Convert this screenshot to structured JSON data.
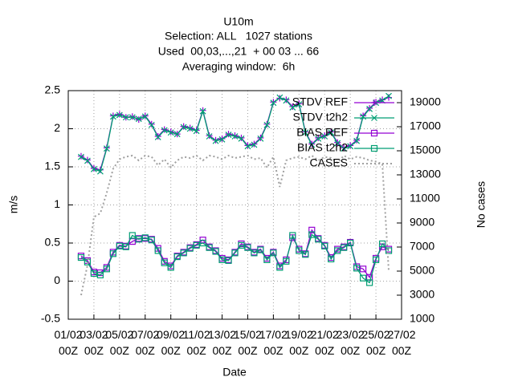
{
  "chart_data": {
    "type": "line",
    "title": "U10m",
    "subtitle": [
      "Selection: ALL   1027 stations",
      "Used  00,03,...,21  + 00 03 ... 66",
      "Averaging window:  6h"
    ],
    "xlabel": "Date",
    "ylabel": "m/s",
    "y2label": "No cases",
    "x": [
      1,
      1.5,
      2,
      2.5,
      3,
      3.5,
      4,
      4.5,
      5,
      5.5,
      6,
      6.5,
      7,
      7.5,
      8,
      8.5,
      9,
      9.5,
      10,
      10.5,
      11,
      11.5,
      12,
      12.5,
      13,
      13.5,
      14,
      14.5,
      15,
      15.5,
      16,
      16.5,
      17,
      17.5,
      18,
      18.5,
      19,
      19.5,
      20,
      20.5,
      21,
      21.5,
      22,
      22.5,
      23,
      23.5,
      24,
      24.5,
      25
    ],
    "xlim": [
      0,
      26
    ],
    "xticks": [
      {
        "value": 0,
        "label": "01/02\n00Z"
      },
      {
        "value": 2,
        "label": "03/02\n00Z"
      },
      {
        "value": 4,
        "label": "05/02\n00Z"
      },
      {
        "value": 6,
        "label": "07/02\n00Z"
      },
      {
        "value": 8,
        "label": "09/02\n00Z"
      },
      {
        "value": 10,
        "label": "11/02\n00Z"
      },
      {
        "value": 12,
        "label": "13/02\n00Z"
      },
      {
        "value": 14,
        "label": "15/02\n00Z"
      },
      {
        "value": 16,
        "label": "17/02\n00Z"
      },
      {
        "value": 18,
        "label": "19/02\n00Z"
      },
      {
        "value": 20,
        "label": "21/02\n00Z"
      },
      {
        "value": 22,
        "label": "23/02\n00Z"
      },
      {
        "value": 24,
        "label": "25/02\n00Z"
      },
      {
        "value": 26,
        "label": "27/02\n00Z"
      }
    ],
    "ylim": [
      -0.5,
      2.5
    ],
    "yticks": [
      -0.5,
      0,
      0.5,
      1,
      1.5,
      2,
      2.5
    ],
    "y2lim": [
      1000,
      20000
    ],
    "y2ticks": [
      1000,
      3000,
      5000,
      7000,
      9000,
      11000,
      13000,
      15000,
      17000,
      19000
    ],
    "grid": true,
    "legend": "top-right",
    "series": [
      {
        "name": "STDV REF",
        "color": "#9400d3",
        "marker": "plus",
        "line_style": "solid",
        "values": [
          1.64,
          1.59,
          1.48,
          1.46,
          1.75,
          2.17,
          2.19,
          2.15,
          2.16,
          2.12,
          2.17,
          2.06,
          1.9,
          1.99,
          1.96,
          1.93,
          2.03,
          2.01,
          1.98,
          2.24,
          1.91,
          1.85,
          1.87,
          1.93,
          1.91,
          1.88,
          1.78,
          1.8,
          1.88,
          2.06,
          2.35,
          2.4,
          2.38,
          2.29,
          2.33,
          1.96,
          1.8,
          1.88,
          1.91,
          1.96,
          1.82,
          1.75,
          1.78,
          1.85,
          2.17,
          2.27,
          2.35,
          2.38,
          2.41
        ]
      },
      {
        "name": "STDV t2h2",
        "color": "#009e73",
        "marker": "cross",
        "line_style": "solid",
        "values": [
          1.63,
          1.58,
          1.47,
          1.44,
          1.74,
          2.16,
          2.18,
          2.15,
          2.15,
          2.13,
          2.16,
          2.05,
          1.89,
          1.98,
          1.95,
          1.93,
          2.02,
          2.0,
          1.97,
          2.23,
          1.9,
          1.84,
          1.86,
          1.92,
          1.9,
          1.87,
          1.77,
          1.79,
          1.87,
          2.05,
          2.34,
          2.41,
          2.37,
          2.28,
          2.32,
          1.95,
          1.79,
          1.87,
          1.9,
          1.95,
          1.81,
          1.74,
          1.77,
          1.84,
          2.16,
          2.26,
          2.34,
          2.37,
          2.43
        ]
      },
      {
        "name": "BIAS REF",
        "color": "#9400d3",
        "marker": "square",
        "line_style": "solid",
        "values": [
          0.33,
          0.27,
          0.12,
          0.11,
          0.18,
          0.38,
          0.47,
          0.46,
          0.52,
          0.56,
          0.56,
          0.55,
          0.43,
          0.26,
          0.2,
          0.33,
          0.38,
          0.44,
          0.48,
          0.54,
          0.45,
          0.4,
          0.3,
          0.28,
          0.38,
          0.49,
          0.45,
          0.38,
          0.42,
          0.3,
          0.38,
          0.2,
          0.28,
          0.57,
          0.42,
          0.36,
          0.67,
          0.56,
          0.47,
          0.31,
          0.42,
          0.45,
          0.51,
          0.19,
          0.16,
          0.05,
          0.3,
          0.45,
          0.42
        ]
      },
      {
        "name": "BIAS t2h2",
        "color": "#009e73",
        "marker": "square",
        "line_style": "solid",
        "values": [
          0.31,
          0.25,
          0.1,
          0.08,
          0.16,
          0.36,
          0.46,
          0.45,
          0.6,
          0.55,
          0.57,
          0.54,
          0.4,
          0.24,
          0.18,
          0.32,
          0.37,
          0.43,
          0.47,
          0.5,
          0.44,
          0.39,
          0.28,
          0.27,
          0.37,
          0.47,
          0.44,
          0.37,
          0.41,
          0.28,
          0.37,
          0.18,
          0.26,
          0.6,
          0.4,
          0.35,
          0.61,
          0.55,
          0.46,
          0.29,
          0.4,
          0.44,
          0.5,
          0.17,
          0.04,
          -0.02,
          0.28,
          0.49,
          0.4
        ]
      },
      {
        "name": "CASES",
        "color": "#a0a0a0",
        "marker": "none",
        "line_style": "dotted",
        "axis": "y2",
        "values": [
          3000,
          5500,
          9500,
          9800,
          11500,
          13500,
          14300,
          14500,
          14600,
          14200,
          14600,
          14500,
          13800,
          14300,
          13600,
          14200,
          14500,
          14400,
          14600,
          14200,
          14600,
          14500,
          14300,
          14600,
          14400,
          14500,
          14600,
          14300,
          14400,
          13600,
          14500,
          12000,
          14200,
          14400,
          14500,
          14300,
          14600,
          14200,
          14500,
          14400,
          14000,
          14600,
          14300,
          14500,
          14400,
          14200,
          14100,
          13900,
          5000
        ]
      }
    ]
  }
}
